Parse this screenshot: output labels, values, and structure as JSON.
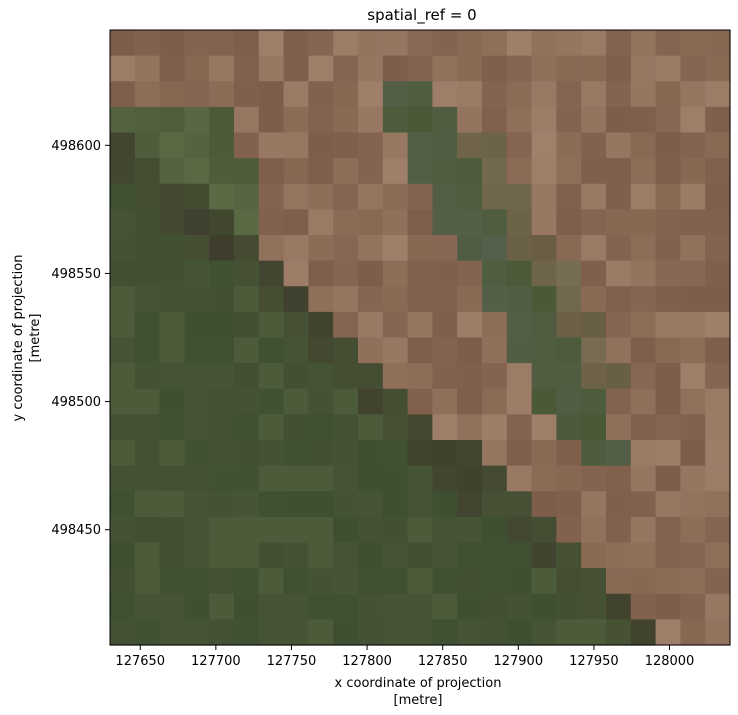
{
  "chart_data": {
    "type": "heatmap",
    "title": "spatial_ref = 0",
    "xlabel": [
      "x coordinate of projection",
      "[metre]"
    ],
    "ylabel": [
      "y coordinate of projection",
      "[metre]"
    ],
    "x_ticks": [
      "127650",
      "127700",
      "127750",
      "127800",
      "127850",
      "127900",
      "127950",
      "128000"
    ],
    "y_ticks": [
      "498600",
      "498550",
      "498500",
      "498450"
    ],
    "x_tick_values": [
      127650,
      127700,
      127750,
      127800,
      127850,
      127900,
      127950,
      128000
    ],
    "y_tick_values": [
      498600,
      498550,
      498500,
      498450
    ],
    "xlim": [
      127630,
      128040
    ],
    "ylim": [
      498405,
      498645
    ],
    "pixel_size_m": 10,
    "rows": 24,
    "cols": 25,
    "palette": {
      "soil": "#8a6a55",
      "soil_light": "#a58570",
      "soil_dark": "#7a5a48",
      "veg": "#4a5a38",
      "veg_dark": "#3a4a2e",
      "veg_light": "#5a6a45",
      "shadow": "#3a3228",
      "stream": "#55604a"
    }
  }
}
